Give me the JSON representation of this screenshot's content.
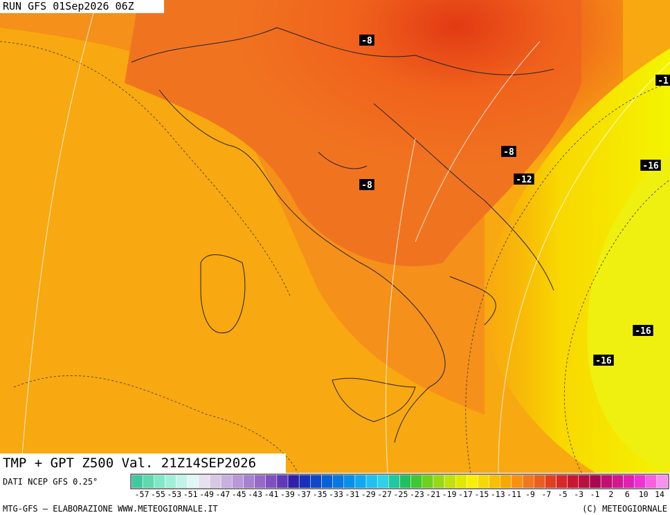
{
  "run_label": "RUN GFS 01Sep2026 06Z",
  "product_label": "TMP + GPT Z500 Val. 21Z14SEP2026",
  "source_label": "DATI NCEP GFS 0.25°",
  "contour_labels": [
    {
      "text": "-8"
    },
    {
      "text": "-8"
    },
    {
      "text": "-8"
    },
    {
      "text": "-12"
    },
    {
      "text": "-16"
    },
    {
      "text": "-16"
    },
    {
      "text": "-16"
    },
    {
      "text": "-1"
    }
  ],
  "colorbar": {
    "labels": [
      "-57",
      "-55",
      "-53",
      "-51",
      "-49",
      "-47",
      "-45",
      "-43",
      "-41",
      "-39",
      "-37",
      "-35",
      "-33",
      "-31",
      "-29",
      "-27",
      "-25",
      "-23",
      "-21",
      "-19",
      "-17",
      "-15",
      "-13",
      "-11",
      "-9",
      "-7",
      "-5",
      "-3",
      "-1",
      "2",
      "6",
      "10",
      "14"
    ]
  },
  "footer": {
    "left": "MTG-GFS — ELABORAZIONE WWW.METEOGIORNALE.IT",
    "right": "(C) METEOGIORNALE"
  }
}
